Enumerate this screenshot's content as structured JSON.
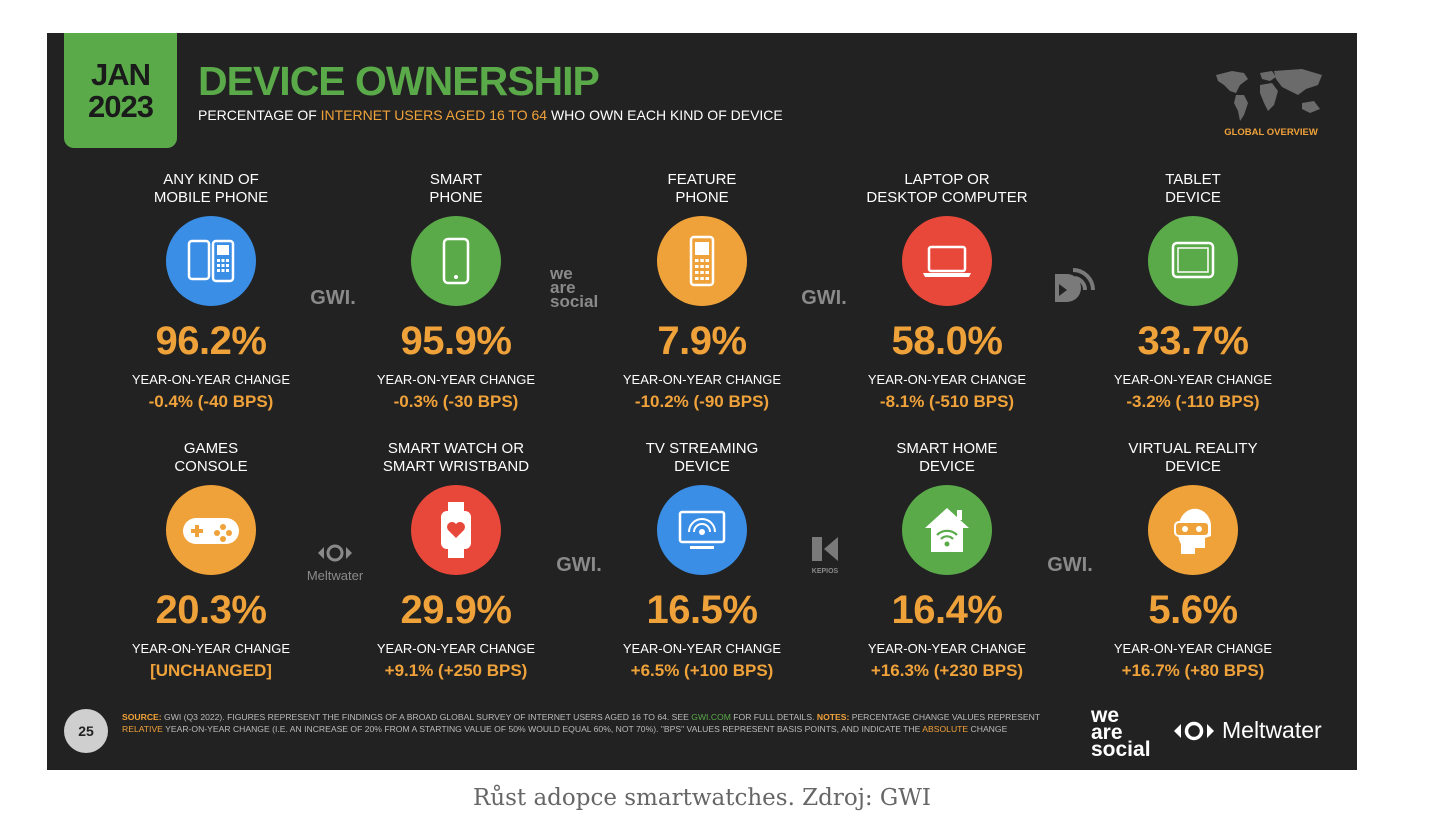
{
  "header": {
    "date_month": "JAN",
    "date_year": "2023",
    "title": "DEVICE OWNERSHIP",
    "subtitle_pre": "PERCENTAGE OF ",
    "subtitle_highlight": "INTERNET USERS AGED 16 TO 64",
    "subtitle_post": " WHO OWN EACH KIND OF DEVICE",
    "global_label": "GLOBAL OVERVIEW"
  },
  "devices": [
    {
      "label": "ANY KIND OF\nMOBILE PHONE",
      "icon": "mobile-phones-icon",
      "color": "#3a8ee6",
      "value": "96.2%",
      "yoy_label": "YEAR-ON-YEAR CHANGE",
      "yoy_value": "-0.4% (-40 BPS)"
    },
    {
      "label": "SMART\nPHONE",
      "icon": "smartphone-icon",
      "color": "#5aaa4a",
      "value": "95.9%",
      "yoy_label": "YEAR-ON-YEAR CHANGE",
      "yoy_value": "-0.3% (-30 BPS)"
    },
    {
      "label": "FEATURE\nPHONE",
      "icon": "feature-phone-icon",
      "color": "#f0a23a",
      "value": "7.9%",
      "yoy_label": "YEAR-ON-YEAR CHANGE",
      "yoy_value": "-10.2% (-90 BPS)"
    },
    {
      "label": "LAPTOP OR\nDESKTOP COMPUTER",
      "icon": "laptop-icon",
      "color": "#e8483a",
      "value": "58.0%",
      "yoy_label": "YEAR-ON-YEAR CHANGE",
      "yoy_value": "-8.1% (-510 BPS)"
    },
    {
      "label": "TABLET\nDEVICE",
      "icon": "tablet-icon",
      "color": "#5aaa4a",
      "value": "33.7%",
      "yoy_label": "YEAR-ON-YEAR CHANGE",
      "yoy_value": "-3.2% (-110 BPS)"
    },
    {
      "label": "GAMES\nCONSOLE",
      "icon": "gamepad-icon",
      "color": "#f0a23a",
      "value": "20.3%",
      "yoy_label": "YEAR-ON-YEAR CHANGE",
      "yoy_value": "[UNCHANGED]"
    },
    {
      "label": "SMART WATCH OR\nSMART WRISTBAND",
      "icon": "smartwatch-icon",
      "color": "#e8483a",
      "value": "29.9%",
      "yoy_label": "YEAR-ON-YEAR CHANGE",
      "yoy_value": "+9.1% (+250 BPS)"
    },
    {
      "label": "TV STREAMING\nDEVICE",
      "icon": "tv-streaming-icon",
      "color": "#3a8ee6",
      "value": "16.5%",
      "yoy_label": "YEAR-ON-YEAR CHANGE",
      "yoy_value": "+6.5% (+100 BPS)"
    },
    {
      "label": "SMART HOME\nDEVICE",
      "icon": "smart-home-icon",
      "color": "#5aaa4a",
      "value": "16.4%",
      "yoy_label": "YEAR-ON-YEAR CHANGE",
      "yoy_value": "+16.3% (+230 BPS)"
    },
    {
      "label": "VIRTUAL REALITY\nDEVICE",
      "icon": "vr-headset-icon",
      "color": "#f0a23a",
      "value": "5.6%",
      "yoy_label": "YEAR-ON-YEAR CHANGE",
      "yoy_value": "+16.7% (+80 BPS)"
    }
  ],
  "brands": {
    "gwi": "GWI.",
    "we_are_social": "we\nare\nsocial",
    "meltwater": "Meltwater",
    "kepios": "KEPIOS"
  },
  "footer": {
    "page_number": "25",
    "source_label": "SOURCE:",
    "source_text": " GWI (Q3 2022). FIGURES REPRESENT THE FINDINGS OF A BROAD GLOBAL SURVEY OF INTERNET USERS AGED 16 TO 64. SEE ",
    "source_link": "GWI.COM",
    "source_text2": " FOR FULL DETAILS. ",
    "notes_label": "NOTES:",
    "notes_text": " PERCENTAGE CHANGE VALUES REPRESENT ",
    "relative": "RELATIVE",
    "notes_text2": " YEAR-ON-YEAR CHANGE (I.E. AN INCREASE OF 20% FROM A STARTING VALUE OF 50% WOULD EQUAL 60%, NOT 70%). \"BPS\" VALUES REPRESENT BASIS POINTS, AND INDICATE THE ",
    "absolute": "ABSOLUTE",
    "notes_text3": " CHANGE",
    "we_are_social": "we\nare\nsocial",
    "meltwater": "Meltwater"
  },
  "caption": "Růst adopce smartwatches. Zdroj: GWI"
}
